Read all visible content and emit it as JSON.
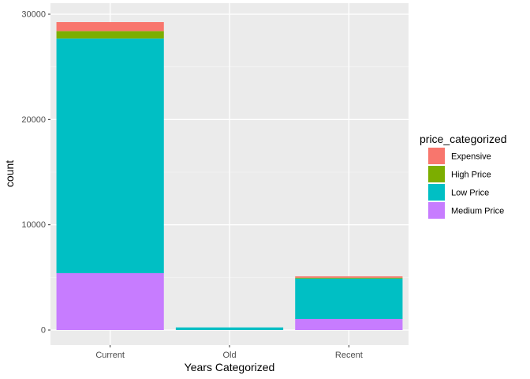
{
  "chart_data": {
    "type": "bar",
    "stacked": true,
    "xlabel": "Years Categorized",
    "ylabel": "count",
    "categories": [
      "Current",
      "Old",
      "Recent"
    ],
    "ylim": [
      0,
      30000
    ],
    "yticks": [
      0,
      10000,
      20000,
      30000
    ],
    "grid": true,
    "legend": {
      "title": "price_categorized",
      "placement": "right"
    },
    "series": [
      {
        "name": "Medium Price",
        "color": "#C77CFF",
        "values": [
          5400,
          0,
          1050
        ]
      },
      {
        "name": "Low Price",
        "color": "#00BFC4",
        "values": [
          22300,
          250,
          3850
        ]
      },
      {
        "name": "High Price",
        "color": "#7CAE00",
        "values": [
          700,
          0,
          70
        ]
      },
      {
        "name": "Expensive",
        "color": "#F8766D",
        "values": [
          850,
          0,
          130
        ]
      }
    ]
  }
}
